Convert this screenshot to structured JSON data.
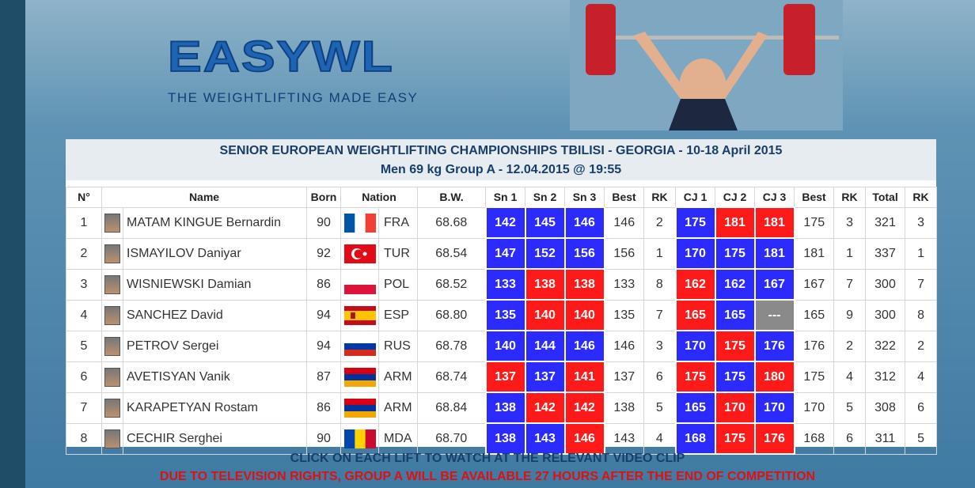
{
  "header": {
    "logo": "EASYWL",
    "tagline": "THE WEIGHTLIFTING MADE EASY"
  },
  "table": {
    "title": "SENIOR EUROPEAN WEIGHTLIFTING CHAMPIONSHIPS TBILISI - GEORGIA - 10-18 April 2015",
    "subtitle": "Men 69 kg Group A - 12.04.2015 @ 19:55",
    "columns": [
      "N°",
      "Name",
      "Born",
      "Nation",
      "B.W.",
      "Sn 1",
      "Sn 2",
      "Sn 3",
      "Best",
      "RK",
      "CJ 1",
      "CJ 2",
      "CJ 3",
      "Best",
      "RK",
      "Total",
      "RK"
    ],
    "rows": [
      [
        1,
        "MATAM KINGUE Bernardin",
        90,
        "FRA",
        "68.68",
        142,
        145,
        146,
        146,
        2,
        175,
        181,
        181,
        175,
        3,
        321,
        3
      ],
      [
        2,
        "ISMAYILOV Daniyar",
        92,
        "TUR",
        "68.54",
        147,
        152,
        156,
        156,
        1,
        170,
        175,
        181,
        181,
        1,
        337,
        1
      ],
      [
        3,
        "WISNIEWSKI Damian",
        86,
        "POL",
        "68.52",
        133,
        138,
        138,
        133,
        8,
        162,
        162,
        167,
        167,
        7,
        300,
        7
      ],
      [
        4,
        "SANCHEZ David",
        94,
        "ESP",
        "68.80",
        135,
        140,
        140,
        135,
        7,
        165,
        165,
        "---",
        165,
        9,
        300,
        8
      ],
      [
        5,
        "PETROV Sergei",
        94,
        "RUS",
        "68.78",
        140,
        144,
        146,
        146,
        3,
        170,
        175,
        176,
        176,
        2,
        322,
        2
      ],
      [
        6,
        "AVETISYAN Vanik",
        87,
        "ARM",
        "68.74",
        137,
        137,
        141,
        137,
        6,
        175,
        175,
        180,
        175,
        4,
        312,
        4
      ],
      [
        7,
        "KARAPETYAN Rostam",
        86,
        "ARM",
        "68.84",
        138,
        142,
        142,
        138,
        5,
        165,
        170,
        170,
        170,
        5,
        308,
        6
      ],
      [
        8,
        "CECHIR Serghei",
        90,
        "MDA",
        "68.70",
        138,
        143,
        146,
        143,
        4,
        168,
        175,
        176,
        168,
        6,
        311,
        5
      ]
    ],
    "lift_colors": [
      [
        "#2b2bff",
        "#2b2bff",
        "#2b2bff",
        "#2b2bff",
        "#ff1a1a",
        "#ff1a1a"
      ],
      [
        "#2b2bff",
        "#2b2bff",
        "#2b2bff",
        "#2b2bff",
        "#2b2bff",
        "#2b2bff"
      ],
      [
        "#2b2bff",
        "#ff1a1a",
        "#ff1a1a",
        "#ff1a1a",
        "#2b2bff",
        "#2b2bff"
      ],
      [
        "#2b2bff",
        "#ff1a1a",
        "#ff1a1a",
        "#ff1a1a",
        "#2b2bff",
        "#8a8a8a"
      ],
      [
        "#2b2bff",
        "#2b2bff",
        "#2b2bff",
        "#2b2bff",
        "#ff1a1a",
        "#2b2bff"
      ],
      [
        "#ff1a1a",
        "#2b2bff",
        "#ff1a1a",
        "#ff1a1a",
        "#2b2bff",
        "#ff1a1a"
      ],
      [
        "#2b2bff",
        "#ff1a1a",
        "#ff1a1a",
        "#2b2bff",
        "#ff1a1a",
        "#2b2bff"
      ],
      [
        "#2b2bff",
        "#2b2bff",
        "#ff1a1a",
        "#2b2bff",
        "#ff1a1a",
        "#ff1a1a"
      ]
    ]
  },
  "footer": {
    "note": "CLICK ON EACH LIFT TO WATCH AT THE RELEVANT VIDEO CLIP",
    "warning": "DUE TO TELEVISION RIGHTS, GROUP A WILL BE AVAILABLE 27 HOURS AFTER THE END OF COMPETITION"
  }
}
